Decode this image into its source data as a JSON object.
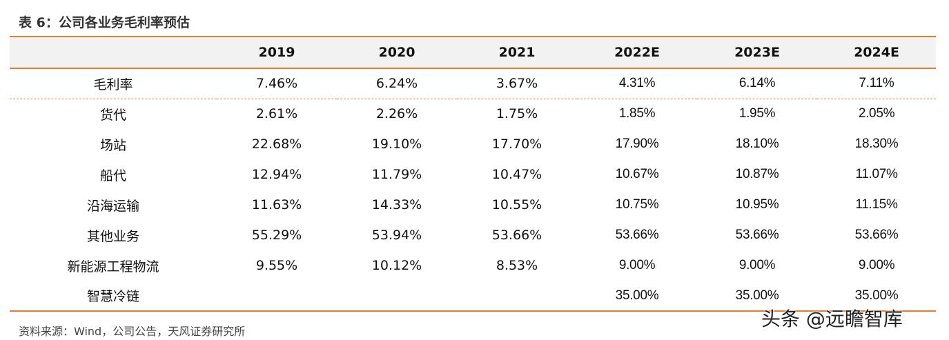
{
  "title": "表 6：公司各业务毛利率预估",
  "table": {
    "header": [
      "",
      "2019",
      "2020",
      "2021",
      "2022E",
      "2023E",
      "2024E"
    ],
    "rows": [
      {
        "label": "毛利率",
        "values": [
          "7.46%",
          "6.24%",
          "3.67%",
          "4.31%",
          "6.14%",
          "7.11%"
        ]
      },
      {
        "label": "货代",
        "values": [
          "2.61%",
          "2.26%",
          "1.75%",
          "1.85%",
          "1.95%",
          "2.05%"
        ]
      },
      {
        "label": "场站",
        "values": [
          "22.68%",
          "19.10%",
          "17.70%",
          "17.90%",
          "18.10%",
          "18.30%"
        ]
      },
      {
        "label": "船代",
        "values": [
          "12.94%",
          "11.79%",
          "10.47%",
          "10.67%",
          "10.87%",
          "11.07%"
        ]
      },
      {
        "label": "沿海运输",
        "values": [
          "11.63%",
          "14.33%",
          "10.55%",
          "10.75%",
          "10.95%",
          "11.15%"
        ]
      },
      {
        "label": "其他业务",
        "values": [
          "55.29%",
          "53.94%",
          "53.66%",
          "53.66%",
          "53.66%",
          "53.66%"
        ]
      },
      {
        "label": "新能源工程物流",
        "values": [
          "9.55%",
          "10.12%",
          "8.53%",
          "9.00%",
          "9.00%",
          "9.00%"
        ]
      },
      {
        "label": "智慧冷链",
        "values": [
          "",
          "",
          "",
          "35.00%",
          "35.00%",
          "35.00%"
        ]
      }
    ]
  },
  "source": "资料来源：Wind，公司公告，天风证券研究所",
  "watermark": "头条 @远瞻智库",
  "colors": {
    "accent": "#e87b2c",
    "header_bg": "#f2f2f2"
  }
}
